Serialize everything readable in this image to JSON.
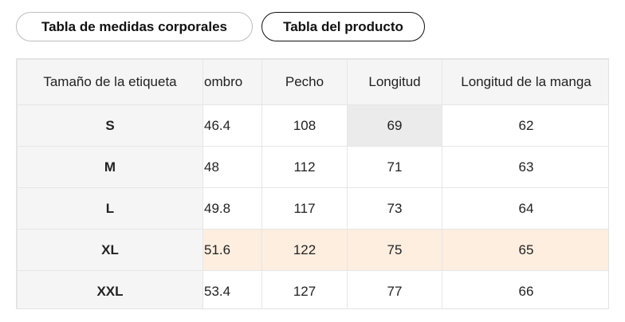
{
  "tabs": [
    "Tabla de medidas corporales",
    "Tabla del producto"
  ],
  "table": {
    "headers": [
      "Tamaño de la etiqueta",
      "ombro",
      "Pecho",
      "Longitud",
      "Longitud de la manga"
    ],
    "rows": [
      {
        "label": "S",
        "values": [
          46.4,
          108,
          69,
          62
        ]
      },
      {
        "label": "M",
        "values": [
          48,
          112,
          71,
          63
        ]
      },
      {
        "label": "L",
        "values": [
          49.8,
          117,
          73,
          64
        ]
      },
      {
        "label": "XL",
        "values": [
          51.6,
          122,
          75,
          65
        ]
      },
      {
        "label": "XXL",
        "values": [
          53.4,
          127,
          77,
          66
        ]
      }
    ]
  }
}
